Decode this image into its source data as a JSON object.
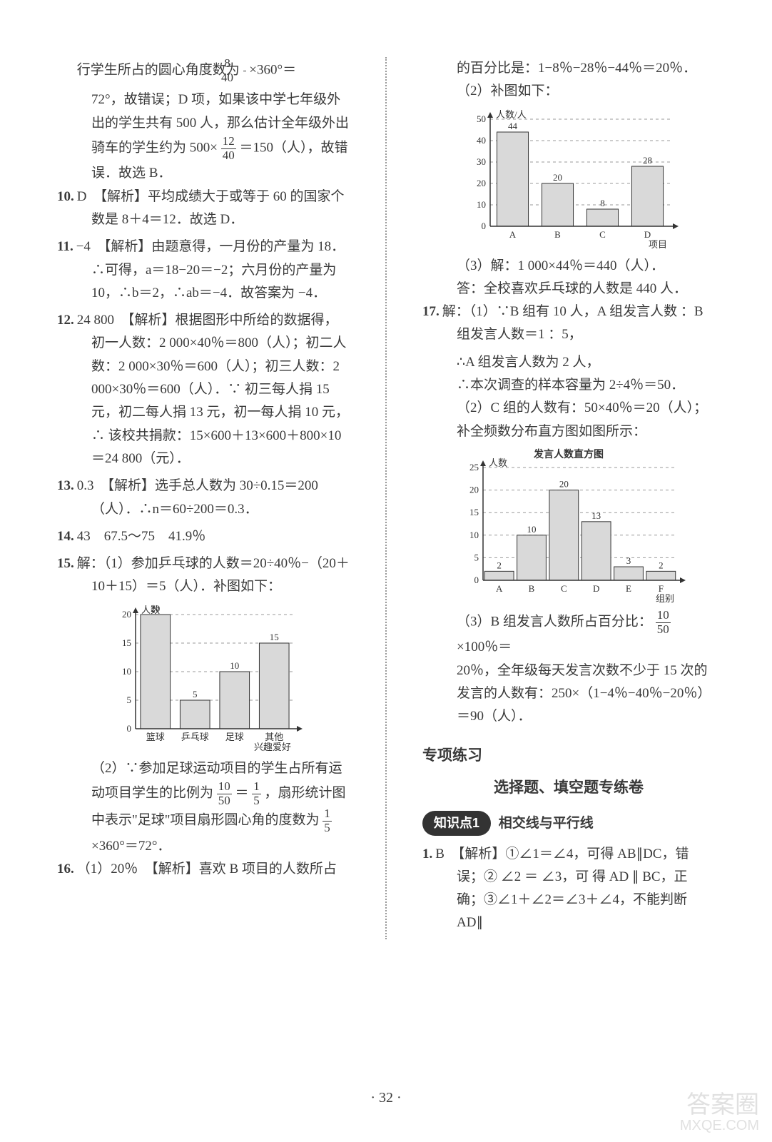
{
  "left": {
    "p1": "行学生所占的圆心角度数为",
    "p1b": "×360°＝",
    "p2": "72°，故错误；D 项，如果该中学七年级外出的学生共有 500 人，那么估计全年级外出骑车的学生约为 500×",
    "p2b": "＝150（人），故错误．故选 B．",
    "q10": "D　【解析】平均成绩大于或等于 60 的国家个数是 8＋4＝12．故选 D．",
    "q11": "−4　【解析】由题意得，一月份的产量为 18．∴可得，a＝18−20＝−2；六月份的产量为 10，∴b＝2，∴ab＝−4．故答案为 −4．",
    "q12": "24 800　【解析】根据图形中所给的数据得，初一人数：2 000×40％＝800（人）；初二人数：2 000×30％＝600（人）；初三人数：2 000×30％＝600（人）．∵ 初三每人捐 15 元，初二每人捐 13 元，初一每人捐 10 元，∴ 该校共捐款：15×600＋13×600＋800×10＝24 800（元）．",
    "q13": "0.3　【解析】选手总人数为 30÷0.15＝200（人）．∴n＝60÷200＝0.3．",
    "q14": "43　67.5～75　41.9％",
    "q15a": "解：（1）参加乒乓球的人数＝20÷40％−（20＋10＋15）＝5（人）．补图如下：",
    "q15b": "（2）∵参加足球运动项目的学生占所有运动项目学生的比例为",
    "q15c": "，扇形统计图中表示\"足球\"项目扇形圆心角的度数为",
    "q15d": "×360°＝72°．",
    "q16": "（1）20％　【解析】喜欢 B 项目的人数所占",
    "chart15": {
      "type": "bar",
      "title": "",
      "xlabel_text": "兴趣爱好",
      "ylabel_text": "人数",
      "categories": [
        "篮球",
        "乒乓球",
        "足球",
        "其他"
      ],
      "values": [
        20,
        5,
        10,
        15
      ],
      "bar_width": 0.75,
      "colors": [
        "#d9d9d9",
        "#d9d9d9",
        "#d9d9d9",
        "#d9d9d9"
      ],
      "ylim": [
        0,
        20
      ],
      "yticks": [
        0,
        5,
        10,
        15,
        20
      ],
      "axis_color": "#333",
      "grid_dash": "4,4",
      "grid_color": "#999",
      "font_size": 13
    }
  },
  "right": {
    "p1": "的百分比是：1−8％−28％−44％＝20％．",
    "p2": "（2）补图如下：",
    "chart16": {
      "type": "bar",
      "xlabel_text": "项目",
      "ylabel_text": "人数/人",
      "categories": [
        "A",
        "B",
        "C",
        "D"
      ],
      "values": [
        44,
        20,
        8,
        28
      ],
      "bar_width": 0.7,
      "colors": [
        "#d9d9d9",
        "#d9d9d9",
        "#d9d9d9",
        "#d9d9d9"
      ],
      "ylim": [
        0,
        50
      ],
      "yticks": [
        0,
        10,
        20,
        30,
        40,
        50
      ],
      "axis_color": "#333",
      "grid_dash": "4,4",
      "grid_color": "#999",
      "font_size": 13
    },
    "p3": "（3）解：1 000×44％＝440（人）．",
    "p4": "答：全校喜欢乒乓球的人数是 440 人．",
    "q17a": "解：（1）∵B 组有 10 人，A 组发言人数 ：B 组发言人数＝1 ：5，",
    "q17b": "∴A 组发言人数为 2 人，",
    "q17c": "∴本次调查的样本容量为 2÷4％＝50．",
    "q17d": "（2）C 组的人数有：50×40％＝20（人）；补全频数分布直方图如图所示：",
    "chart17": {
      "type": "bar",
      "title": "发言人数直方图",
      "xlabel_text": "组别",
      "ylabel_text": "人数",
      "categories": [
        "A",
        "B",
        "C",
        "D",
        "E",
        "F"
      ],
      "values": [
        2,
        10,
        20,
        13,
        3,
        2
      ],
      "bar_width": 0.9,
      "colors": [
        "#d9d9d9",
        "#d9d9d9",
        "#d9d9d9",
        "#d9d9d9",
        "#d9d9d9",
        "#d9d9d9"
      ],
      "ylim": [
        0,
        25
      ],
      "yticks": [
        0,
        5,
        10,
        15,
        20,
        25
      ],
      "axis_color": "#333",
      "grid_dash": "4,4",
      "grid_color": "#999",
      "font_size": 13
    },
    "q17e1": "（3）B 组发言人数所占百分比：",
    "q17e2": "×100％＝",
    "q17f": "20％，全年级每天发言次数不少于 15 次的发言的人数有：250×（1−4％−40％−20％）＝90（人）．",
    "sec_head": "专项练习",
    "sub_head": "选择题、填空题专练卷",
    "pill": "知识点1",
    "pill_label": "相交线与平行线",
    "q1": "B　【解析】①∠1＝∠4，可得 AB∥DC，错误；② ∠2 ＝ ∠3，可 得 AD ∥ BC，正 确；③∠1＋∠2＝∠3＋∠4，不能判断 AD∥"
  },
  "footer": "· 32 ·",
  "watermark1": "答案圈",
  "watermark2": "MXQE.COM"
}
